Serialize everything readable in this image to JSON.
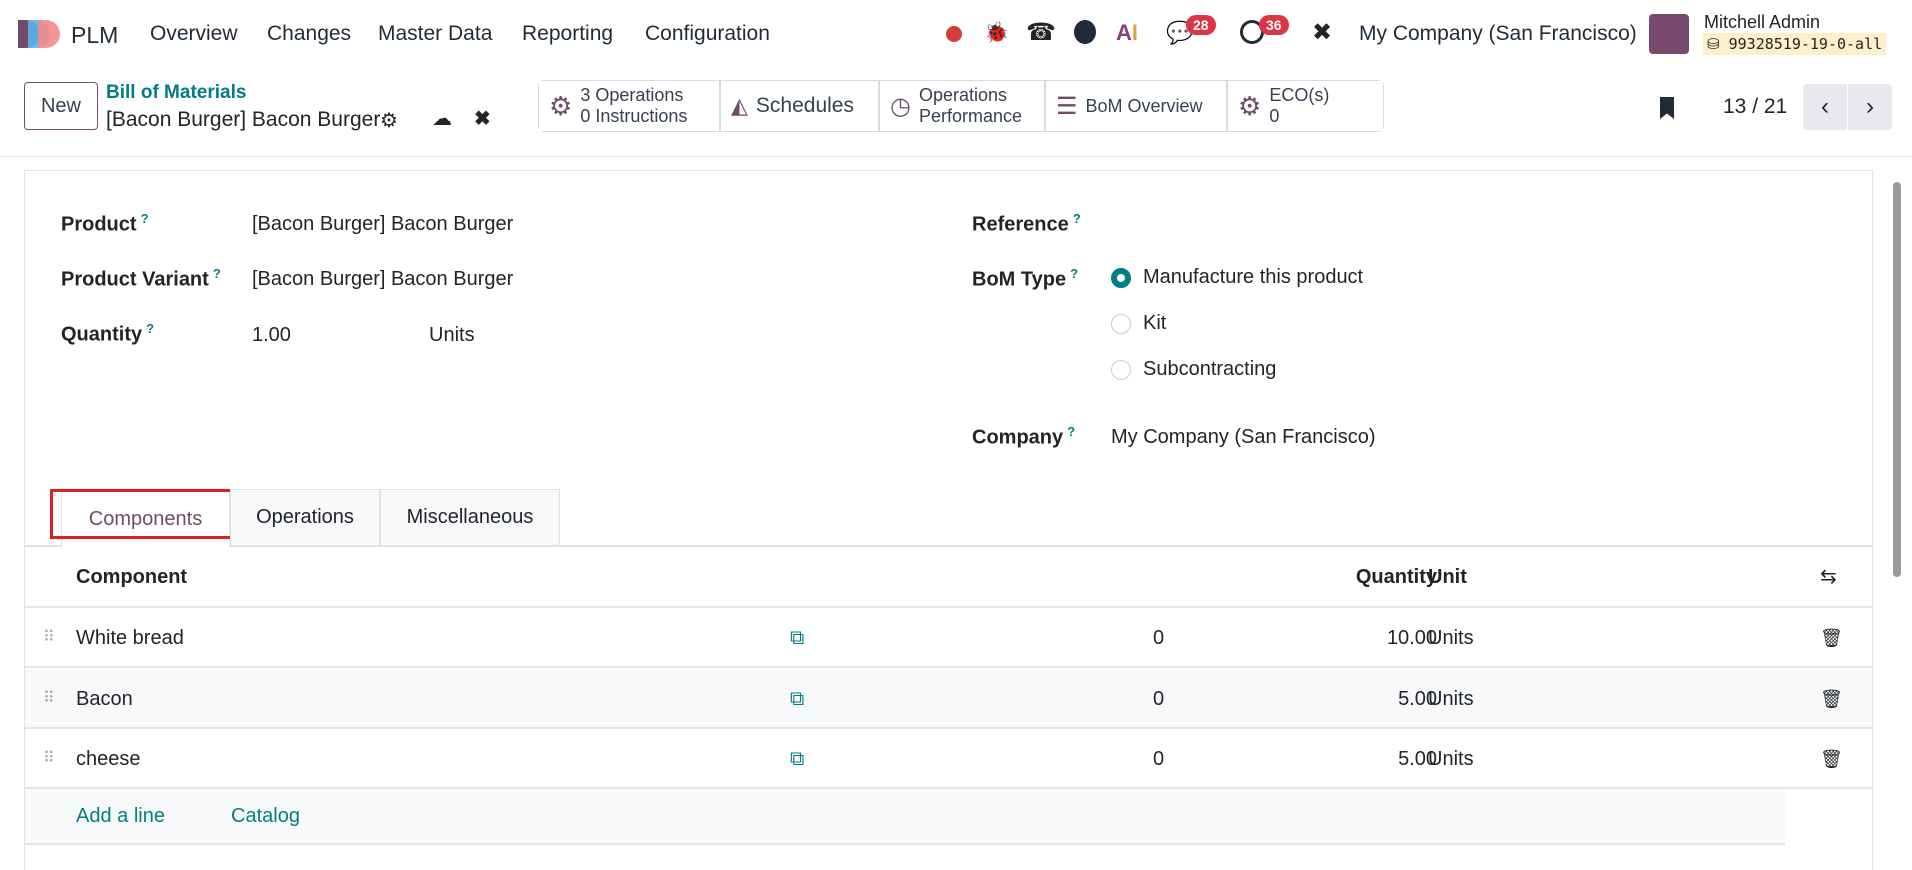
{
  "nav": {
    "app": "PLM",
    "menu": [
      "Overview",
      "Changes",
      "Master Data",
      "Reporting",
      "Configuration"
    ],
    "messages_count": "28",
    "activities_count": "36",
    "company": "My Company (San Francisco)",
    "user": "Mitchell Admin",
    "database": "99328519-19-0-all",
    "icons": [
      "record-icon",
      "bug-icon",
      "phone-icon",
      "globe-icon",
      "ai-icon",
      "chat-icon",
      "clock-icon",
      "tools-icon"
    ]
  },
  "control": {
    "new_label": "New",
    "breadcrumb": "Bill of Materials",
    "record_title": "[Bacon Burger] Bacon Burger",
    "smart_buttons": [
      {
        "line1": "3 Operations",
        "line2": "0 Instructions"
      },
      {
        "line1": "Schedules"
      },
      {
        "line1": "Operations",
        "line2": "Performance"
      },
      {
        "line1": "BoM Overview"
      },
      {
        "line1": "ECO(s)",
        "line2": "0"
      }
    ],
    "pager": "13 / 21"
  },
  "form": {
    "product_label": "Product",
    "product": "[Bacon Burger] Bacon Burger",
    "variant_label": "Product Variant",
    "variant": "[Bacon Burger] Bacon Burger",
    "quantity_label": "Quantity",
    "quantity": "1.00",
    "uom": "Units",
    "reference_label": "Reference",
    "bom_type_label": "BoM Type",
    "bom_types": [
      "Manufacture this product",
      "Kit",
      "Subcontracting"
    ],
    "bom_type_selected": "Manufacture this product",
    "company_label": "Company",
    "company": "My Company (San Francisco)",
    "help": "?"
  },
  "tabs": [
    "Components",
    "Operations",
    "Miscellaneous"
  ],
  "table": {
    "headers": {
      "component": "Component",
      "quantity": "Quantity",
      "unit": "Unit"
    },
    "rows": [
      {
        "component": "White bread",
        "zero": "0",
        "quantity": "10.00",
        "unit": "Units"
      },
      {
        "component": "Bacon",
        "zero": "0",
        "quantity": "5.00",
        "unit": "Units"
      },
      {
        "component": "cheese",
        "zero": "0",
        "quantity": "5.00",
        "unit": "Units"
      }
    ],
    "add_line": "Add a line",
    "catalog": "Catalog"
  },
  "colors": {
    "accent": "#017e84",
    "brand": "#714b67",
    "highlight": "#e02020"
  }
}
